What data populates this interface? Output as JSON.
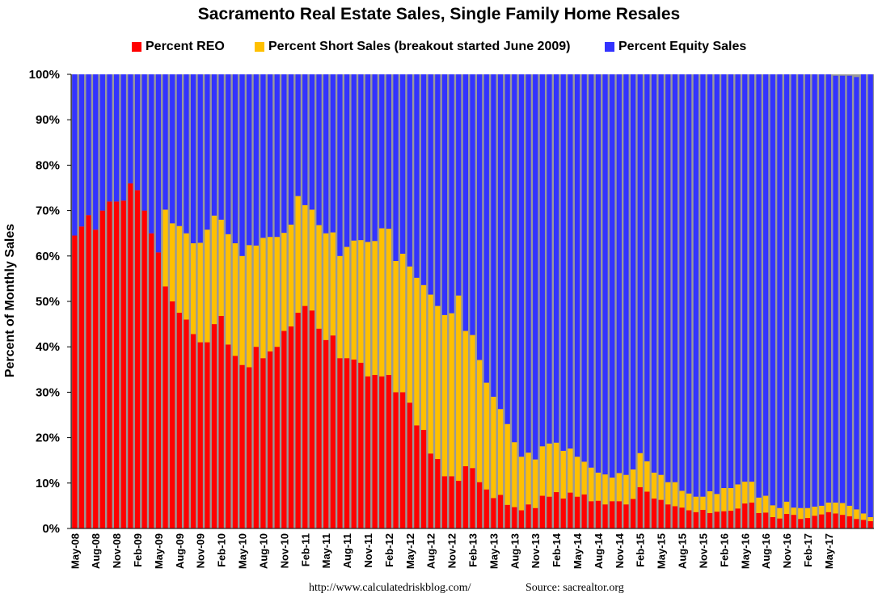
{
  "chart_data": {
    "type": "bar",
    "stacked": true,
    "title": "Sacramento Real Estate Sales, Single Family Home Resales",
    "ylabel": "Percent of Monthly Sales",
    "xlabel": "",
    "ylim": [
      0,
      100
    ],
    "yticks": [
      "0%",
      "10%",
      "20%",
      "30%",
      "40%",
      "50%",
      "60%",
      "70%",
      "80%",
      "90%",
      "100%"
    ],
    "legend_position": "top",
    "grid": false,
    "start_month": "May-08",
    "x_tick_labels": [
      "May-08",
      "Aug-08",
      "Nov-08",
      "Feb-09",
      "May-09",
      "Aug-09",
      "Nov-09",
      "Feb-10",
      "May-10",
      "Aug-10",
      "Nov-10",
      "Feb-11",
      "May-11",
      "Aug-11",
      "Nov-11",
      "Feb-12",
      "May-12",
      "Aug-12",
      "Nov-12",
      "Feb-13",
      "May-13",
      "Aug-13",
      "Nov-13",
      "Feb-14",
      "May-14",
      "Aug-14",
      "Nov-14",
      "Feb-15",
      "May-15",
      "Aug-15",
      "Nov-15",
      "Feb-16",
      "May-16",
      "Aug-16",
      "Nov-16",
      "Feb-17",
      "May-17"
    ],
    "series": [
      {
        "name": "Percent REO",
        "color": "#ff0000",
        "values": [
          64.5,
          66.5,
          69,
          65.8,
          70,
          72,
          72,
          72.2,
          76,
          74.5,
          70,
          65,
          60.8,
          53.3,
          50,
          47.5,
          46,
          42.8,
          41,
          41,
          45,
          46.8,
          40.5,
          38,
          36,
          35.5,
          40,
          37.5,
          39,
          40,
          43.5,
          44.5,
          47.5,
          49,
          48,
          44,
          41.5,
          42.5,
          37.5,
          37.5,
          37.2,
          36.5,
          33.5,
          33.8,
          33.5,
          33.8,
          30,
          30,
          27.7,
          22.7,
          21.7,
          16.5,
          15.3,
          11.5,
          11.5,
          10.5,
          13.7,
          13.3,
          10.2,
          8.6,
          6.7,
          7.4,
          5.2,
          4.7,
          4.0,
          5.3,
          4.5,
          7.2,
          7.0,
          8.0,
          6.6,
          7.9,
          7.0,
          7.5,
          6.0,
          6.1,
          5.3,
          6.0,
          6.0,
          5.3,
          6.5,
          9.1,
          8.1,
          6.6,
          6.3,
          5.3,
          4.9,
          4.6,
          4.0,
          3.6,
          4.1,
          3.4,
          3.7,
          3.8,
          3.9,
          4.4,
          5.5,
          5.7,
          3.4,
          3.5,
          2.5,
          2.2,
          3.2,
          3.0,
          2.1,
          2.3,
          2.8,
          3.1,
          3.6,
          3.3,
          3.0,
          2.7,
          2.1,
          1.9,
          1.6
        ]
      },
      {
        "name": "Percent Short Sales (breakout started June 2009)",
        "color": "#ffc000",
        "values": [
          0,
          0,
          0,
          0,
          0,
          0,
          0,
          0,
          0,
          0,
          0,
          0,
          0,
          16.9,
          17.2,
          19.1,
          19.0,
          20.0,
          21.9,
          24.8,
          23.9,
          21.2,
          24.3,
          24.8,
          24.0,
          26.9,
          22.3,
          26.5,
          25.2,
          24.2,
          21.6,
          22.4,
          25.7,
          22.2,
          22.2,
          22.8,
          23.5,
          22.7,
          22.5,
          24.5,
          26.2,
          27.0,
          29.6,
          29.5,
          32.6,
          32.2,
          28.9,
          30.5,
          30.0,
          32.5,
          31.9,
          35.0,
          33.7,
          35.5,
          35.9,
          40.8,
          29.8,
          29.3,
          26.9,
          23.5,
          22.3,
          18.9,
          17.8,
          14.3,
          11.8,
          11.4,
          10.7,
          10.9,
          11.7,
          10.9,
          10.5,
          9.7,
          8.8,
          7.2,
          7.4,
          6.2,
          6.6,
          5.2,
          6.2,
          6.5,
          6.5,
          7.5,
          6.7,
          5.7,
          5.5,
          4.9,
          5.3,
          3.7,
          3.7,
          3.4,
          2.9,
          4.8,
          3.9,
          5.1,
          5.0,
          5.3,
          4.8,
          4.6,
          3.4,
          3.7,
          2.6,
          2.3,
          2.7,
          1.6,
          2.4,
          2.2,
          2.0,
          1.9,
          2.1,
          2.4,
          2.6,
          2.3,
          2.1,
          1.4,
          0.9
        ]
      },
      {
        "name": "Percent Equity Sales",
        "color": "#3333ff",
        "values": [
          35.5,
          33.5,
          31,
          34.2,
          30,
          28,
          28,
          27.8,
          24,
          25.5,
          30,
          35,
          39.2,
          29.8,
          32.8,
          33.4,
          35.0,
          37.2,
          37.1,
          34.2,
          31.1,
          32.0,
          35.2,
          37.2,
          40.0,
          37.6,
          37.7,
          36.0,
          35.8,
          35.8,
          34.9,
          33.1,
          26.8,
          28.8,
          29.8,
          33.2,
          35.0,
          34.8,
          40.0,
          38.0,
          36.6,
          36.5,
          36.9,
          36.7,
          33.9,
          34.0,
          41.1,
          39.5,
          42.3,
          44.8,
          46.4,
          48.5,
          51.0,
          53.0,
          52.6,
          48.7,
          56.5,
          57.4,
          62.9,
          67.9,
          71.0,
          73.7,
          77.0,
          81.0,
          84.2,
          83.3,
          84.8,
          81.9,
          81.3,
          81.1,
          82.9,
          82.4,
          84.2,
          85.3,
          86.6,
          87.7,
          88.1,
          88.8,
          87.8,
          88.2,
          87.0,
          83.4,
          85.2,
          87.7,
          88.2,
          89.8,
          89.8,
          91.7,
          92.3,
          93.0,
          93.0,
          91.8,
          92.4,
          91.1,
          91.1,
          90.3,
          89.7,
          89.7,
          93.2,
          92.8,
          94.9,
          95.5,
          94.1,
          95.4,
          95.5,
          95.5,
          95.2,
          95.0,
          94.3,
          94.0,
          94.1,
          94.7,
          95.2,
          96.7,
          97.5
        ]
      }
    ]
  },
  "footer": {
    "url": "http://www.calculatedriskblog.com/",
    "source": "Source: sacrealtor.org"
  }
}
